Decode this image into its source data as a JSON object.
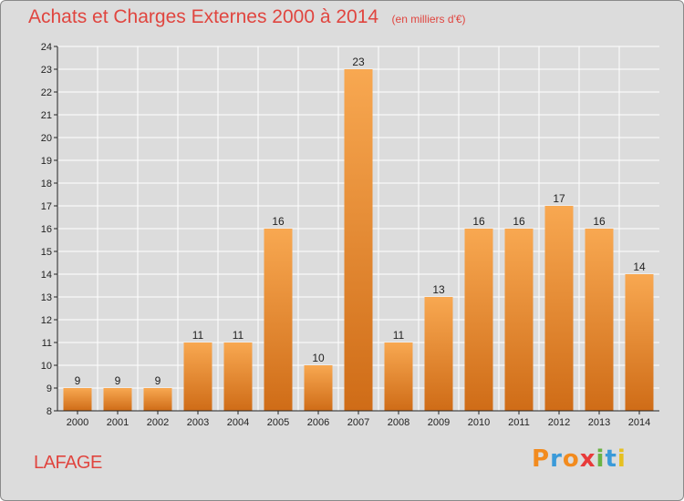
{
  "title": "Achats et Charges Externes 2000 à 2014",
  "subtitle": "(en milliers d'€)",
  "commune": "LAFAGE",
  "brand": {
    "letters": [
      "P",
      "r",
      "o",
      "x",
      "i",
      "t",
      "i"
    ],
    "colors": [
      "#f28b1e",
      "#3a9ad9",
      "#f28b1e",
      "#e83a3a",
      "#6ab344",
      "#3a9ad9",
      "#e6c020"
    ]
  },
  "colors": {
    "bar_light": "#f8a851",
    "bar_dark": "#cf6c17",
    "grid": "#ffffff",
    "axis": "#222222",
    "text": "#222222",
    "accent": "#e0453f"
  },
  "chart_data": {
    "type": "bar",
    "categories": [
      "2000",
      "2001",
      "2002",
      "2003",
      "2004",
      "2005",
      "2006",
      "2007",
      "2008",
      "2009",
      "2010",
      "2011",
      "2012",
      "2013",
      "2014"
    ],
    "values": [
      9,
      9,
      9,
      11,
      11,
      16,
      10,
      23,
      11,
      13,
      16,
      16,
      17,
      16,
      14
    ],
    "data_labels": [
      "9",
      "9",
      "9",
      "11",
      "11",
      "16",
      "10",
      "23",
      "11",
      "13",
      "16",
      "16",
      "17",
      "16",
      "14"
    ],
    "ylim": [
      8,
      24
    ],
    "yticks": [
      8,
      9,
      10,
      11,
      12,
      13,
      14,
      15,
      16,
      17,
      18,
      19,
      20,
      21,
      22,
      23,
      24
    ],
    "xlabel": "",
    "ylabel": "",
    "grid": true
  }
}
